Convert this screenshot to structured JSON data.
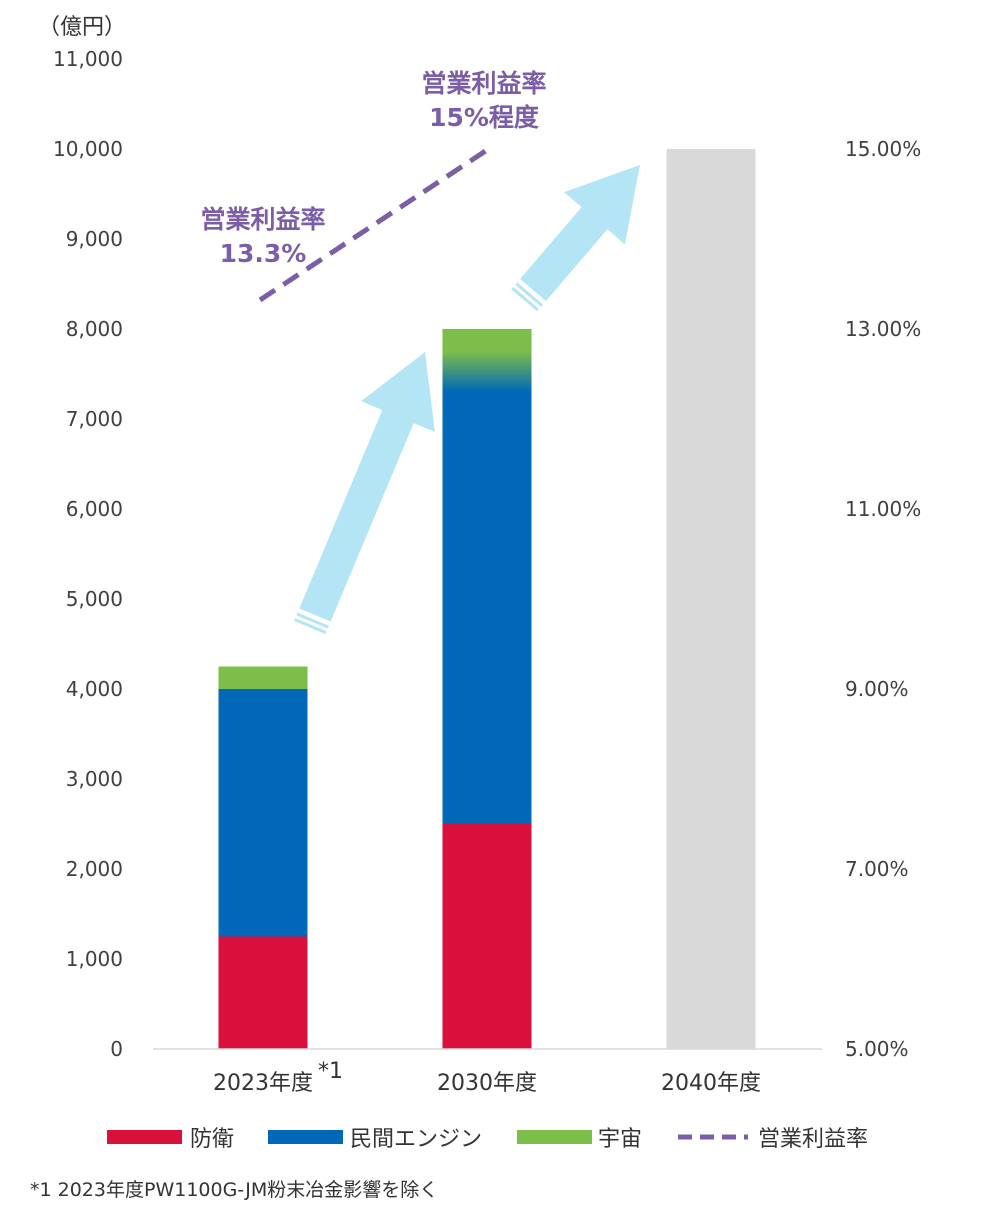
{
  "chart_data": {
    "type": "bar",
    "stacked": true,
    "categories": [
      "2023年度",
      "2030年度",
      "2040年度"
    ],
    "category_superscripts": [
      "*1",
      "",
      ""
    ],
    "series": [
      {
        "name": "防衛",
        "color": "#D9103C",
        "values": [
          1250,
          2500,
          null
        ]
      },
      {
        "name": "民間エンジン",
        "color": "#0068B7",
        "values": [
          2750,
          4800,
          null
        ]
      },
      {
        "name": "宇宙",
        "color": "#7DBE48",
        "values": [
          250,
          700,
          null
        ]
      }
    ],
    "total_bar": {
      "color": "#D9D9D9",
      "values": [
        null,
        null,
        10000
      ]
    },
    "line_series": {
      "name": "営業利益率",
      "color": "#7B5EA7",
      "style": "dashed"
    },
    "y_unit": "（億円）",
    "ylim": [
      0,
      11000
    ],
    "yticks": [
      "0",
      "1,000",
      "2,000",
      "3,000",
      "4,000",
      "5,000",
      "6,000",
      "7,000",
      "8,000",
      "9,000",
      "10,000",
      "11,000"
    ],
    "y2ticks": [
      {
        "value": 5,
        "label": "5.00%"
      },
      {
        "value": 7,
        "label": "7.00%"
      },
      {
        "value": 9,
        "label": "9.00%"
      },
      {
        "value": 11,
        "label": "11.00%"
      },
      {
        "value": 13,
        "label": "13.00%"
      },
      {
        "value": 15,
        "label": "15.00%"
      }
    ],
    "annotations": [
      {
        "line1": "営業利益率",
        "line2": "13.3%"
      },
      {
        "line1": "営業利益率",
        "line2": "15%程度"
      }
    ],
    "arrow_color": "#B3E5F5",
    "legend_position": "bottom"
  },
  "footnote": "*1 2023年度PW1100G-JM粉末冶金影響を除く"
}
